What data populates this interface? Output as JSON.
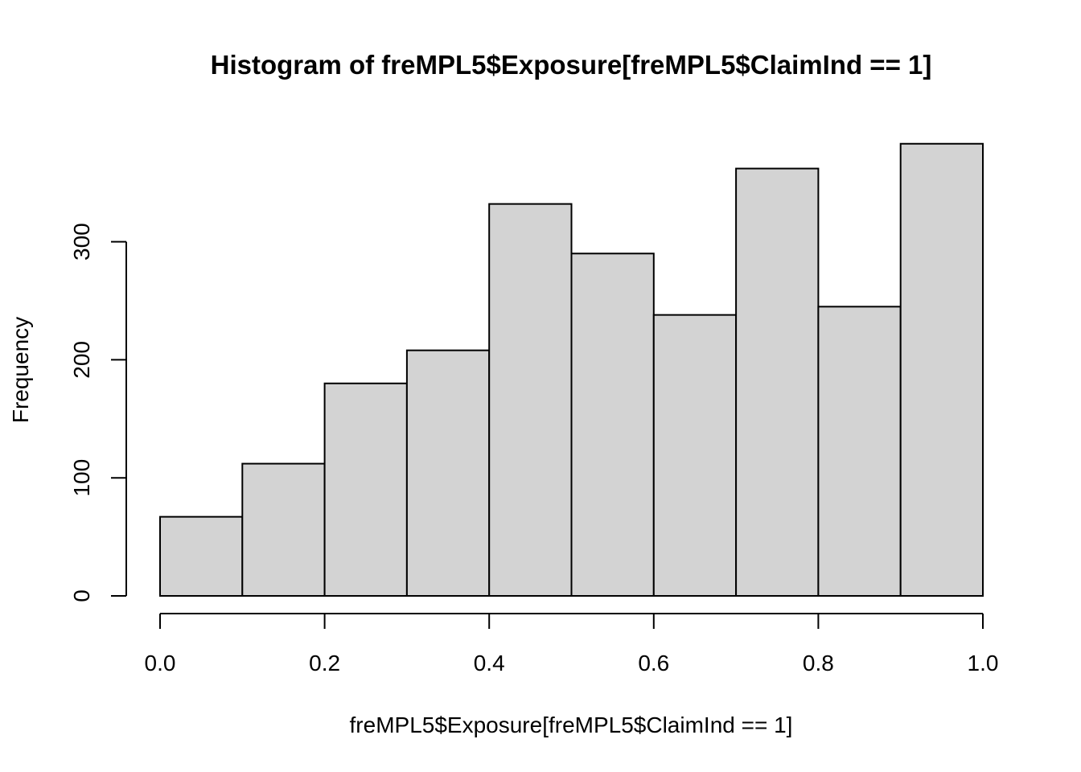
{
  "chart_data": {
    "type": "bar",
    "title": "Histogram of freMPL5$Exposure[freMPL5$ClaimInd == 1]",
    "xlabel": "freMPL5$Exposure[freMPL5$ClaimInd == 1]",
    "ylabel": "Frequency",
    "bin_edges": [
      0.0,
      0.1,
      0.2,
      0.3,
      0.4,
      0.5,
      0.6,
      0.7,
      0.8,
      0.9,
      1.0
    ],
    "values": [
      67,
      112,
      180,
      208,
      332,
      290,
      238,
      362,
      245,
      383
    ],
    "xlim": [
      0.0,
      1.0
    ],
    "ylim": [
      0,
      383
    ],
    "x_ticks": [
      0.0,
      0.2,
      0.4,
      0.6,
      0.8,
      1.0
    ],
    "x_tick_labels": [
      "0.0",
      "0.2",
      "0.4",
      "0.6",
      "0.8",
      "1.0"
    ],
    "y_ticks": [
      0,
      100,
      200,
      300
    ],
    "y_tick_labels": [
      "0",
      "100",
      "200",
      "300"
    ],
    "grid": false,
    "legend": "none",
    "colors": {
      "bar_fill": "#d3d3d3",
      "bar_stroke": "#000000",
      "background": "#ffffff"
    }
  }
}
